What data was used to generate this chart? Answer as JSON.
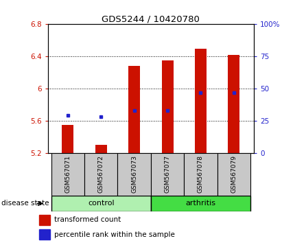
{
  "title": "GDS5244 / 10420780",
  "samples": [
    "GSM567071",
    "GSM567072",
    "GSM567073",
    "GSM567077",
    "GSM567078",
    "GSM567079"
  ],
  "bar_bottom": 5.2,
  "red_tops": [
    5.55,
    5.3,
    6.28,
    6.35,
    6.5,
    6.42
  ],
  "blue_values": [
    5.67,
    5.65,
    5.73,
    5.73,
    5.95,
    5.95
  ],
  "ylim_left": [
    5.2,
    6.8
  ],
  "ylim_right": [
    0,
    100
  ],
  "yticks_left": [
    5.2,
    5.6,
    6.0,
    6.4,
    6.8
  ],
  "yticks_right": [
    0,
    25,
    50,
    75,
    100
  ],
  "ytick_labels_left": [
    "5.2",
    "5.6",
    "6",
    "6.4",
    "6.8"
  ],
  "ytick_labels_right": [
    "0",
    "25",
    "50",
    "75",
    "100%"
  ],
  "bar_color": "#cc1100",
  "dot_color": "#2222cc",
  "gray_color": "#c8c8c8",
  "ctrl_color": "#b0f0b0",
  "arth_color": "#44dd44",
  "legend_red_label": "transformed count",
  "legend_blue_label": "percentile rank within the sample",
  "disease_state_label": "disease state"
}
